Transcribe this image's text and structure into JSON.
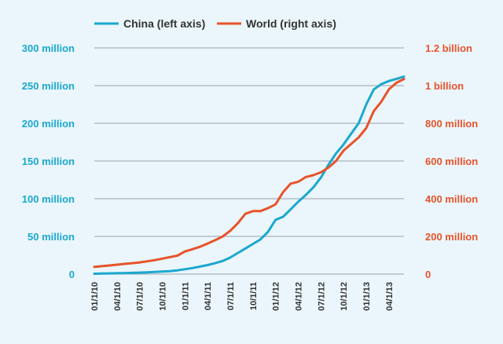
{
  "chart_data": {
    "type": "line",
    "x": [
      "01/1/10",
      "02/1/10",
      "03/1/10",
      "04/1/10",
      "05/1/10",
      "06/1/10",
      "07/1/10",
      "08/1/10",
      "09/1/10",
      "10/1/10",
      "11/1/10",
      "12/1/10",
      "01/1/11",
      "02/1/11",
      "03/1/11",
      "04/1/11",
      "05/1/11",
      "06/1/11",
      "07/1/11",
      "08/1/11",
      "09/1/11",
      "10/1/11",
      "11/1/11",
      "12/1/11",
      "01/1/12",
      "02/1/12",
      "03/1/12",
      "04/1/12",
      "05/1/12",
      "06/1/12",
      "07/1/12",
      "08/1/12",
      "09/1/12",
      "10/1/12",
      "11/1/12",
      "12/1/12",
      "01/1/13",
      "02/1/13",
      "03/1/13",
      "04/1/13",
      "05/1/13",
      "06/1/13"
    ],
    "xticks": [
      "01/1/10",
      "04/1/10",
      "07/1/10",
      "10/1/10",
      "01/1/11",
      "04/1/11",
      "07/1/11",
      "10/1/11",
      "01/1/12",
      "04/1/12",
      "07/1/12",
      "10/1/12",
      "01/1/13",
      "04/1/13"
    ],
    "series": [
      {
        "name": "China (left axis)",
        "axis": "left",
        "color": "#1ba7cf",
        "values": [
          0.5,
          0.7,
          0.9,
          1.1,
          1.4,
          1.7,
          2.0,
          2.4,
          2.8,
          3.3,
          4.0,
          5.0,
          6.5,
          8.0,
          10.0,
          12.0,
          14.5,
          17.5,
          22,
          28,
          34,
          40,
          46,
          56,
          72,
          76,
          86,
          96,
          105,
          115,
          128,
          145,
          160,
          172,
          186,
          200,
          225,
          245,
          252,
          256,
          259,
          262
        ]
      },
      {
        "name": "World (right axis)",
        "axis": "right",
        "color": "#e8532b",
        "values": [
          38,
          42,
          46,
          50,
          54,
          58,
          62,
          68,
          74,
          82,
          90,
          98,
          120,
          132,
          145,
          162,
          180,
          200,
          230,
          270,
          320,
          334,
          334,
          350,
          370,
          435,
          480,
          490,
          515,
          525,
          540,
          565,
          600,
          655,
          690,
          725,
          775,
          865,
          915,
          980,
          1015,
          1035
        ]
      }
    ],
    "y_left": {
      "ylim": [
        0,
        300000000
      ],
      "ticks": [
        0,
        50,
        100,
        150,
        200,
        250,
        300
      ],
      "tick_labels": [
        "0",
        "50 million",
        "100 million",
        "150 million",
        "200 million",
        "250 million",
        "300 million"
      ]
    },
    "y_right": {
      "ylim": [
        0,
        1200000000
      ],
      "ticks": [
        0,
        200,
        400,
        600,
        800,
        1000,
        1200
      ],
      "tick_labels": [
        "0",
        "200 million",
        "400 million",
        "600 million",
        "800 million",
        "1 billion",
        "1.2 billion"
      ]
    },
    "legend": {
      "placement": "top-center",
      "entries": [
        "China (left axis)",
        "World (right axis)"
      ]
    },
    "grid": true,
    "colors": {
      "background": "#eaf6fb",
      "grid": "#9aa3a8",
      "left_axis": "#1ba7cf",
      "right_axis": "#e8532b"
    }
  }
}
